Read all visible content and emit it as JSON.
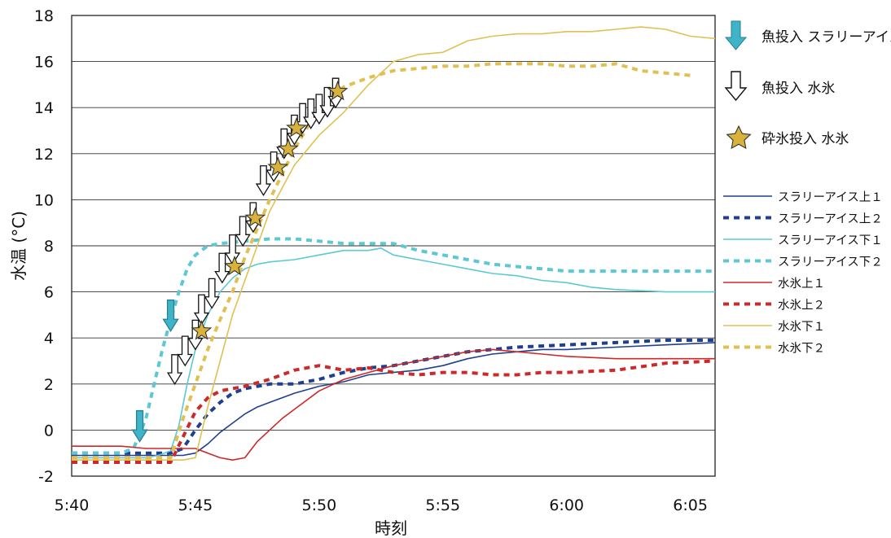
{
  "chart_data": {
    "type": "line",
    "xlabel": "時刻",
    "ylabel": "水温 (°C)",
    "xlim": [
      "5:40",
      "6:06"
    ],
    "ylim": [
      -2,
      18
    ],
    "x_ticks": [
      "5:40",
      "5:45",
      "5:50",
      "5:55",
      "6:00",
      "6:05"
    ],
    "y_ticks": [
      -2,
      0,
      2,
      4,
      6,
      8,
      10,
      12,
      14,
      16,
      18
    ],
    "grid": "horizontal",
    "legend_position": "right",
    "series": [
      {
        "name": "スラリーアイス上１",
        "color": "#1f3f8f",
        "dash": "solid",
        "x": [
          "5:40",
          "5:41",
          "5:42",
          "5:43",
          "5:44",
          "5:44:30",
          "5:45",
          "5:45:30",
          "5:46",
          "5:46:30",
          "5:47",
          "5:47:30",
          "5:48",
          "5:49",
          "5:50",
          "5:51",
          "5:52",
          "5:53",
          "5:54",
          "5:55",
          "5:56",
          "5:57",
          "5:58",
          "5:59",
          "6:00",
          "6:02",
          "6:04",
          "6:06"
        ],
        "y": [
          -1.1,
          -1.1,
          -1.1,
          -1.1,
          -1.1,
          -1.1,
          -1.0,
          -0.6,
          -0.1,
          0.3,
          0.7,
          1.0,
          1.2,
          1.6,
          1.9,
          2.1,
          2.4,
          2.5,
          2.6,
          2.8,
          3.1,
          3.3,
          3.4,
          3.5,
          3.5,
          3.6,
          3.7,
          3.8
        ]
      },
      {
        "name": "スラリーアイス上２",
        "color": "#1f3f8f",
        "dash": "dash",
        "x": [
          "5:40",
          "5:43",
          "5:44",
          "5:44:30",
          "5:45",
          "5:45:30",
          "5:46",
          "5:46:30",
          "5:47",
          "5:48",
          "5:49",
          "5:50",
          "5:51",
          "5:52",
          "5:53",
          "5:54",
          "5:55",
          "5:56",
          "5:57",
          "5:58",
          "6:00",
          "6:02",
          "6:04",
          "6:06"
        ],
        "y": [
          -1.0,
          -1.0,
          -1.0,
          -0.8,
          0.0,
          0.7,
          1.2,
          1.6,
          1.8,
          2.0,
          2.0,
          2.2,
          2.5,
          2.7,
          2.8,
          3.0,
          3.2,
          3.4,
          3.5,
          3.6,
          3.7,
          3.8,
          3.9,
          3.9
        ]
      },
      {
        "name": "スラリーアイス下１",
        "color": "#5bc8d4",
        "dash": "solid",
        "x": [
          "5:40",
          "5:43",
          "5:43:30",
          "5:44",
          "5:44:20",
          "5:44:40",
          "5:45",
          "5:45:30",
          "5:46",
          "5:46:30",
          "5:47",
          "5:47:30",
          "5:48",
          "5:49",
          "5:50",
          "5:51",
          "5:52",
          "5:52:30",
          "5:53",
          "5:54",
          "5:55",
          "5:56",
          "5:57",
          "5:58",
          "5:59",
          "6:00",
          "6:01",
          "6:02",
          "6:04",
          "6:06"
        ],
        "y": [
          -1.2,
          -1.2,
          -1.1,
          -0.9,
          0.2,
          2.0,
          3.5,
          5.0,
          6.0,
          6.6,
          7.0,
          7.2,
          7.3,
          7.4,
          7.6,
          7.8,
          7.8,
          7.9,
          7.6,
          7.4,
          7.2,
          7.0,
          6.8,
          6.7,
          6.5,
          6.4,
          6.2,
          6.1,
          6.0,
          6.0
        ]
      },
      {
        "name": "スラリーアイス下２",
        "color": "#5bc8d4",
        "dash": "dash",
        "x": [
          "5:40",
          "5:42",
          "5:42:30",
          "5:43",
          "5:43:20",
          "5:43:40",
          "5:44",
          "5:44:20",
          "5:44:40",
          "5:45",
          "5:45:30",
          "5:46",
          "5:47",
          "5:48",
          "5:49",
          "5:50",
          "5:51",
          "5:52",
          "5:53",
          "5:54",
          "5:55",
          "5:56",
          "5:57",
          "5:58",
          "5:59",
          "6:00",
          "6:02",
          "6:04",
          "6:06"
        ],
        "y": [
          -1.0,
          -1.0,
          -0.8,
          0.5,
          2.0,
          3.5,
          4.8,
          6.0,
          7.0,
          7.6,
          8.0,
          8.1,
          8.2,
          8.3,
          8.3,
          8.2,
          8.1,
          8.1,
          8.1,
          7.8,
          7.6,
          7.4,
          7.2,
          7.1,
          7.0,
          6.9,
          6.9,
          6.9,
          6.9
        ]
      },
      {
        "name": "水氷上１",
        "color": "#cc2a2a",
        "dash": "solid",
        "x": [
          "5:40",
          "5:42",
          "5:43",
          "5:44",
          "5:45",
          "5:45:30",
          "5:46",
          "5:46:30",
          "5:47",
          "5:47:30",
          "5:48",
          "5:48:30",
          "5:49",
          "5:50",
          "5:51",
          "5:52",
          "5:53",
          "5:54",
          "5:55",
          "5:56",
          "5:57",
          "5:58",
          "5:59",
          "6:00",
          "6:02",
          "6:04",
          "6:06"
        ],
        "y": [
          -0.7,
          -0.7,
          -0.8,
          -0.8,
          -0.8,
          -1.0,
          -1.2,
          -1.3,
          -1.2,
          -0.5,
          0.0,
          0.5,
          0.9,
          1.7,
          2.2,
          2.5,
          2.8,
          3.0,
          3.2,
          3.4,
          3.5,
          3.4,
          3.3,
          3.2,
          3.1,
          3.1,
          3.1
        ]
      },
      {
        "name": "水氷上２",
        "color": "#cc2a2a",
        "dash": "dash",
        "x": [
          "5:40",
          "5:43",
          "5:44",
          "5:44:30",
          "5:45",
          "5:45:30",
          "5:46",
          "5:47",
          "5:48",
          "5:49",
          "5:50",
          "5:51",
          "5:52",
          "5:53",
          "5:54",
          "5:55",
          "5:56",
          "5:57",
          "5:58",
          "5:59",
          "6:00",
          "6:02",
          "6:04",
          "6:06"
        ],
        "y": [
          -1.4,
          -1.4,
          -1.4,
          -0.3,
          0.8,
          1.4,
          1.7,
          1.9,
          2.2,
          2.6,
          2.8,
          2.6,
          2.7,
          2.5,
          2.4,
          2.5,
          2.5,
          2.4,
          2.4,
          2.5,
          2.5,
          2.6,
          2.9,
          3.0
        ]
      },
      {
        "name": "水氷下１",
        "color": "#e0c050",
        "dash": "solid",
        "x": [
          "5:40",
          "5:44",
          "5:44:30",
          "5:45",
          "5:45:30",
          "5:46",
          "5:46:30",
          "5:47",
          "5:47:30",
          "5:48",
          "5:49",
          "5:50",
          "5:51",
          "5:52",
          "5:53",
          "5:54",
          "5:55",
          "5:56",
          "5:57",
          "5:58",
          "5:59",
          "6:00",
          "6:01",
          "6:02",
          "6:03",
          "6:04",
          "6:05",
          "6:06"
        ],
        "y": [
          -1.3,
          -1.3,
          -1.3,
          -1.2,
          1.0,
          3.0,
          5.0,
          6.5,
          8.0,
          9.5,
          11.5,
          12.8,
          13.8,
          15.0,
          16.0,
          16.3,
          16.4,
          16.9,
          17.1,
          17.2,
          17.2,
          17.3,
          17.3,
          17.4,
          17.5,
          17.4,
          17.1,
          17.0
        ]
      },
      {
        "name": "水氷下２",
        "color": "#e0c050",
        "dash": "dash",
        "x": [
          "5:40",
          "5:43",
          "5:44",
          "5:44:30",
          "5:45",
          "5:45:30",
          "5:46",
          "5:46:30",
          "5:47",
          "5:48",
          "5:49",
          "5:50",
          "5:51",
          "5:52",
          "5:53",
          "5:54",
          "5:55",
          "5:56",
          "5:57",
          "5:58",
          "5:59",
          "6:00",
          "6:01",
          "6:02",
          "6:03",
          "6:04",
          "6:05"
        ],
        "y": [
          -1.2,
          -1.2,
          -1.2,
          0.5,
          2.0,
          3.5,
          4.8,
          6.0,
          7.5,
          10.0,
          12.2,
          14.0,
          14.9,
          15.3,
          15.6,
          15.7,
          15.8,
          15.8,
          15.9,
          15.9,
          15.9,
          15.8,
          15.8,
          15.9,
          15.6,
          15.5,
          15.4
        ]
      }
    ],
    "event_markers": {
      "fish_slurry_times": [
        "5:42:45",
        "5:44:00"
      ],
      "fish_water_times": [
        "5:44:10",
        "5:44:35",
        "5:45:00",
        "5:45:15",
        "5:45:40",
        "5:46:05",
        "5:46:30",
        "5:46:55",
        "5:47:20",
        "5:47:45",
        "5:48:10",
        "5:48:35",
        "5:49:00",
        "5:49:20",
        "5:49:40",
        "5:50:00",
        "5:50:20",
        "5:50:40"
      ],
      "crushed_ice_times": [
        "5:45:15",
        "5:46:35",
        "5:47:25",
        "5:48:20",
        "5:48:45",
        "5:49:05",
        "5:50:45"
      ],
      "crushed_ice_values": [
        4.3,
        7.1,
        9.2,
        11.4,
        12.2,
        13.1,
        14.7
      ]
    },
    "annotations": {
      "fish_slurry": "魚投入  スラリーアイス",
      "fish_water": "魚投入  水氷",
      "crushed_ice": "砕氷投入  水氷"
    }
  }
}
